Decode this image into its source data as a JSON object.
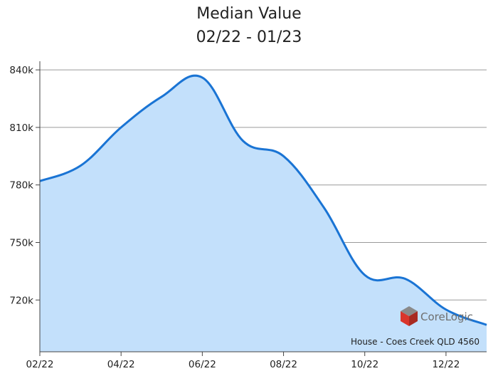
{
  "chart_data": {
    "type": "area",
    "title": [
      "Median Value",
      "02/22 - 01/23"
    ],
    "xlabel": "",
    "ylabel": "",
    "x": [
      "02/22",
      "03/22",
      "04/22",
      "05/22",
      "06/22",
      "07/22",
      "08/22",
      "09/22",
      "10/22",
      "11/22",
      "12/22",
      "01/23"
    ],
    "x_ticks": [
      "02/22",
      "04/22",
      "06/22",
      "08/22",
      "10/22",
      "12/22"
    ],
    "series": [
      {
        "values": [
          782000,
          790000,
          810000,
          826000,
          836000,
          803000,
          795000,
          768000,
          733000,
          731000,
          715000,
          707000
        ]
      }
    ],
    "y_ticks": [
      "720k",
      "750k",
      "780k",
      "810k",
      "840k"
    ],
    "y_tick_values": [
      720000,
      750000,
      780000,
      810000,
      840000
    ],
    "ylim": [
      693000,
      844500
    ],
    "grid": true,
    "line_color": "#1a74d4",
    "fill_color": "#c3e0fb",
    "grid_color": "#9a9a9a"
  },
  "source_note": "House - Coes Creek QLD 4560",
  "brand": {
    "name": "CoreLogic",
    "logo": "cube-icon"
  }
}
